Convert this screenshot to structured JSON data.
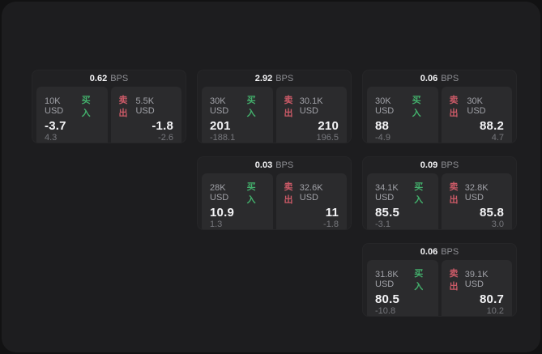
{
  "labels": {
    "buy": "买入",
    "sell": "卖出",
    "bps_unit": "BPS"
  },
  "colors": {
    "page_bg": "#121213",
    "panel_bg": "#1d1d1f",
    "card_bg": "#212123",
    "pane_bg": "#2b2b2d",
    "buy_green": "#43b06c",
    "sell_red": "#cb5a67",
    "value_white": "#f4f4f6",
    "label_gray": "#a0a1a7",
    "sub_gray": "#76777c",
    "unit_gray": "#8e8f94"
  },
  "cards": [
    {
      "bps": "0.62",
      "buy": {
        "size": "10K USD",
        "value": "-3.7",
        "sub": "4.3"
      },
      "sell": {
        "size": "5.5K USD",
        "value": "-1.8",
        "sub": "-2.6"
      }
    },
    {
      "bps": "2.92",
      "buy": {
        "size": "30K USD",
        "value": "201",
        "sub": "-188.1"
      },
      "sell": {
        "size": "30.1K USD",
        "value": "210",
        "sub": "196.5"
      }
    },
    {
      "bps": "0.06",
      "buy": {
        "size": "30K USD",
        "value": "88",
        "sub": "-4.9"
      },
      "sell": {
        "size": "30K USD",
        "value": "88.2",
        "sub": "4.7"
      }
    },
    {
      "bps": "0.03",
      "buy": {
        "size": "28K USD",
        "value": "10.9",
        "sub": "1.3"
      },
      "sell": {
        "size": "32.6K USD",
        "value": "11",
        "sub": "-1.8"
      }
    },
    {
      "bps": "0.09",
      "buy": {
        "size": "34.1K USD",
        "value": "85.5",
        "sub": "-3.1"
      },
      "sell": {
        "size": "32.8K USD",
        "value": "85.8",
        "sub": "3.0"
      }
    },
    {
      "bps": "0.06",
      "buy": {
        "size": "31.8K USD",
        "value": "80.5",
        "sub": "-10.8"
      },
      "sell": {
        "size": "39.1K USD",
        "value": "80.7",
        "sub": "10.2"
      }
    }
  ]
}
